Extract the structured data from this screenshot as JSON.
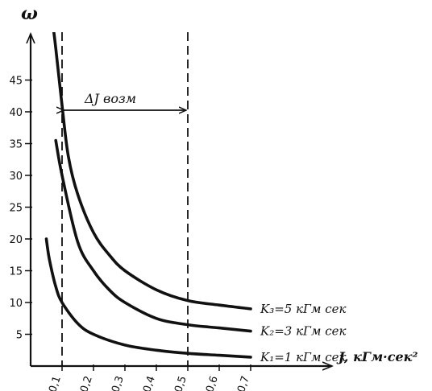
{
  "chart_data": {
    "type": "line",
    "title": "",
    "ylabel": "ω",
    "xlabel": "J, кГм·сек²",
    "xlim": [
      0,
      0.87
    ],
    "ylim": [
      0,
      50
    ],
    "x_ticks": [
      0.1,
      0.2,
      0.3,
      0.4,
      0.5,
      0.6,
      0.7
    ],
    "x_tick_labels": [
      "0,1",
      "0,2",
      "0,3",
      "0,4",
      "0,5",
      "0,6",
      "0,7"
    ],
    "y_ticks": [
      5,
      10,
      15,
      20,
      25,
      30,
      35,
      40,
      45
    ],
    "y_tick_labels": [
      "5",
      "10",
      "15",
      "20",
      "25",
      "30",
      "35",
      "40",
      "45"
    ],
    "grid": false,
    "reference_lines": [
      {
        "axis": "x",
        "value": 0.1,
        "style": "dashed"
      },
      {
        "axis": "x",
        "value": 0.5,
        "style": "dashed"
      }
    ],
    "annotation": {
      "text": "ΔJ возм",
      "from_x": 0.1,
      "to_x": 0.5,
      "y": 40,
      "style": "double-arrow"
    },
    "series": [
      {
        "name": "K₁=1 кГм сек",
        "x": [
          0.05,
          0.06,
          0.08,
          0.1,
          0.15,
          0.2,
          0.3,
          0.4,
          0.5,
          0.6,
          0.7
        ],
        "y": [
          20,
          16.7,
          12.5,
          10,
          6.7,
          5,
          3.3,
          2.5,
          2,
          1.7,
          1.4
        ]
      },
      {
        "name": "K₂=3 кГм сек",
        "x": [
          0.08,
          0.1,
          0.15,
          0.2,
          0.25,
          0.3,
          0.4,
          0.5,
          0.6,
          0.7
        ],
        "y": [
          35.5,
          30,
          19.5,
          15,
          12,
          10,
          7.5,
          6.5,
          6,
          5.5
        ]
      },
      {
        "name": "K₃=5 кГм сек",
        "x": [
          0.07,
          0.08,
          0.1,
          0.12,
          0.15,
          0.2,
          0.25,
          0.3,
          0.4,
          0.5,
          0.6,
          0.7
        ],
        "y": [
          54,
          50,
          41,
          33,
          27,
          21,
          17.5,
          15,
          12,
          10.3,
          9.6,
          9
        ]
      }
    ]
  }
}
